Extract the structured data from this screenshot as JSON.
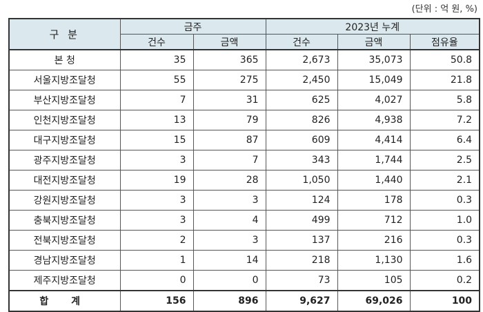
{
  "unit_note": "(단위 : 억 원, %)",
  "header": {
    "division": "구 분",
    "week_group": "금주",
    "cumulative_group": "2023년 누계",
    "cols": [
      "건수",
      "금액",
      "건수",
      "금액",
      "점유율"
    ]
  },
  "rows": [
    {
      "name": "본 청",
      "w_count": "35",
      "w_amount": "365",
      "c_count": "2,673",
      "c_amount": "35,073",
      "share": "50.8"
    },
    {
      "name": "서울지방조달청",
      "w_count": "55",
      "w_amount": "275",
      "c_count": "2,450",
      "c_amount": "15,049",
      "share": "21.8"
    },
    {
      "name": "부산지방조달청",
      "w_count": "7",
      "w_amount": "31",
      "c_count": "625",
      "c_amount": "4,027",
      "share": "5.8"
    },
    {
      "name": "인천지방조달청",
      "w_count": "13",
      "w_amount": "79",
      "c_count": "826",
      "c_amount": "4,938",
      "share": "7.2"
    },
    {
      "name": "대구지방조달청",
      "w_count": "15",
      "w_amount": "87",
      "c_count": "609",
      "c_amount": "4,414",
      "share": "6.4"
    },
    {
      "name": "광주지방조달청",
      "w_count": "3",
      "w_amount": "7",
      "c_count": "343",
      "c_amount": "1,744",
      "share": "2.5"
    },
    {
      "name": "대전지방조달청",
      "w_count": "19",
      "w_amount": "28",
      "c_count": "1,050",
      "c_amount": "1,440",
      "share": "2.1"
    },
    {
      "name": "강원지방조달청",
      "w_count": "3",
      "w_amount": "3",
      "c_count": "124",
      "c_amount": "178",
      "share": "0.3"
    },
    {
      "name": "충북지방조달청",
      "w_count": "3",
      "w_amount": "4",
      "c_count": "499",
      "c_amount": "712",
      "share": "1.0"
    },
    {
      "name": "전북지방조달청",
      "w_count": "2",
      "w_amount": "3",
      "c_count": "137",
      "c_amount": "216",
      "share": "0.3"
    },
    {
      "name": "경남지방조달청",
      "w_count": "1",
      "w_amount": "14",
      "c_count": "218",
      "c_amount": "1,130",
      "share": "1.6"
    },
    {
      "name": "제주지방조달청",
      "w_count": "0",
      "w_amount": "0",
      "c_count": "73",
      "c_amount": "105",
      "share": "0.2"
    }
  ],
  "total": {
    "name": "합 계",
    "w_count": "156",
    "w_amount": "896",
    "c_count": "9,627",
    "c_amount": "69,026",
    "share": "100"
  }
}
